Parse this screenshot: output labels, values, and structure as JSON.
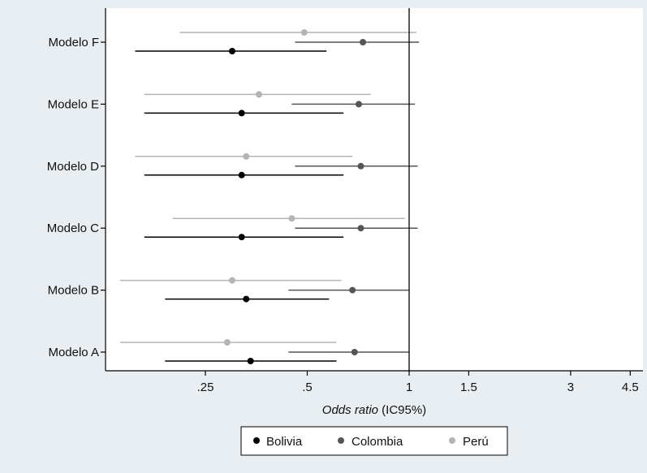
{
  "chart_data": {
    "type": "scatter",
    "subtype": "forest-plot",
    "title": "",
    "xlabel_italic": "Odds ratio",
    "xlabel_rest": " (IC95%)",
    "x_scale": "log",
    "xlim": [
      0.14,
      5.0
    ],
    "x_ticks": [
      0.25,
      0.5,
      1,
      1.5,
      3,
      4.5
    ],
    "x_tick_labels": [
      ".25",
      ".5",
      "1",
      "1.5",
      "3",
      "4.5"
    ],
    "reference_line": 1,
    "grid": false,
    "legend_position": "bottom",
    "categories": [
      "Modelo F",
      "Modelo E",
      "Modelo D",
      "Modelo C",
      "Modelo B",
      "Modelo A"
    ],
    "series": [
      {
        "name": "Bolivia",
        "color": "#000000",
        "points": [
          {
            "category": "Modelo F",
            "or": 0.3,
            "lo": 0.155,
            "hi": 0.57
          },
          {
            "category": "Modelo E",
            "or": 0.32,
            "lo": 0.165,
            "hi": 0.64
          },
          {
            "category": "Modelo D",
            "or": 0.32,
            "lo": 0.165,
            "hi": 0.64
          },
          {
            "category": "Modelo C",
            "or": 0.32,
            "lo": 0.165,
            "hi": 0.64
          },
          {
            "category": "Modelo B",
            "or": 0.33,
            "lo": 0.19,
            "hi": 0.58
          },
          {
            "category": "Modelo A",
            "or": 0.34,
            "lo": 0.19,
            "hi": 0.61
          }
        ]
      },
      {
        "name": "Colombia",
        "color": "#555555",
        "points": [
          {
            "category": "Modelo F",
            "or": 0.73,
            "lo": 0.46,
            "hi": 1.07
          },
          {
            "category": "Modelo E",
            "or": 0.71,
            "lo": 0.45,
            "hi": 1.04
          },
          {
            "category": "Modelo D",
            "or": 0.72,
            "lo": 0.46,
            "hi": 1.06
          },
          {
            "category": "Modelo C",
            "or": 0.72,
            "lo": 0.46,
            "hi": 1.06
          },
          {
            "category": "Modelo B",
            "or": 0.68,
            "lo": 0.44,
            "hi": 1.0
          },
          {
            "category": "Modelo A",
            "or": 0.69,
            "lo": 0.44,
            "hi": 1.0
          }
        ]
      },
      {
        "name": "Perú",
        "color": "#b4b4b4",
        "points": [
          {
            "category": "Modelo F",
            "or": 0.49,
            "lo": 0.21,
            "hi": 1.05
          },
          {
            "category": "Modelo E",
            "or": 0.36,
            "lo": 0.165,
            "hi": 0.77
          },
          {
            "category": "Modelo D",
            "or": 0.33,
            "lo": 0.155,
            "hi": 0.68
          },
          {
            "category": "Modelo C",
            "or": 0.45,
            "lo": 0.2,
            "hi": 0.97
          },
          {
            "category": "Modelo B",
            "or": 0.3,
            "lo": 0.14,
            "hi": 0.63
          },
          {
            "category": "Modelo A",
            "or": 0.29,
            "lo": 0.14,
            "hi": 0.61
          }
        ]
      }
    ]
  }
}
